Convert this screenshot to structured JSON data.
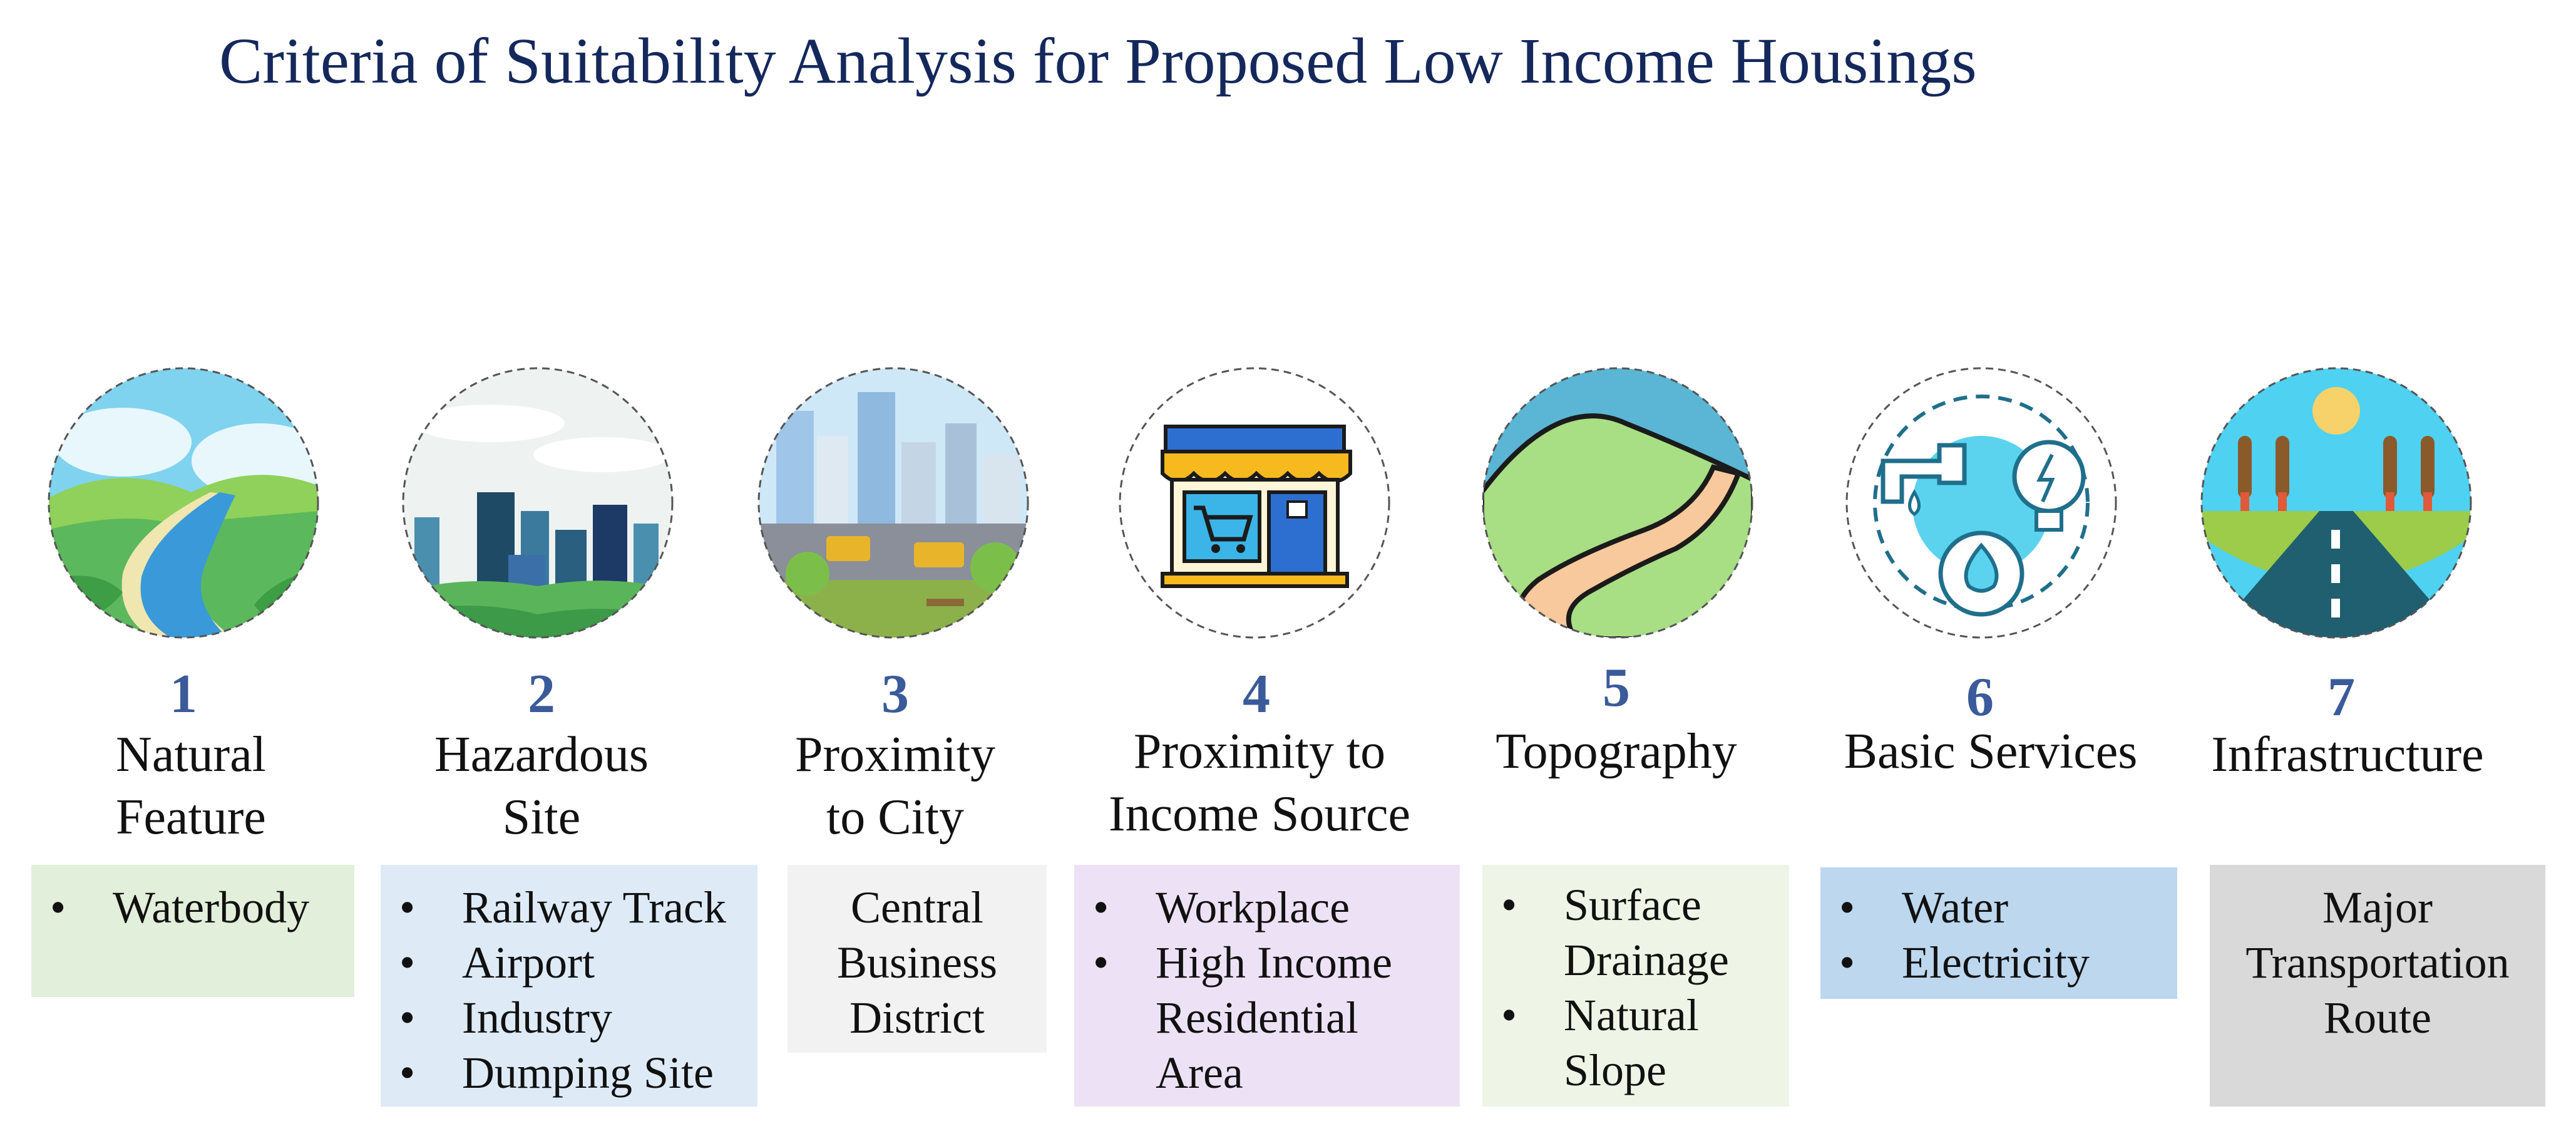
{
  "title": "Criteria of Suitability Analysis for Proposed Low Income Housings",
  "criteria": [
    {
      "number": "1",
      "label_lines": [
        "Natural",
        "Feature"
      ],
      "items": [
        "Waterbody"
      ],
      "box_color": "#e2efda",
      "icon": "landscape-river-icon"
    },
    {
      "number": "2",
      "label_lines": [
        "Hazardous",
        "Site"
      ],
      "items": [
        "Railway Track",
        "Airport",
        "Industry",
        "Dumping Site"
      ],
      "box_color": "#deebf7",
      "icon": "city-skyline-icon"
    },
    {
      "number": "3",
      "label_lines": [
        "Proximity",
        "to City"
      ],
      "text_lines": [
        "Central",
        "Business",
        "District"
      ],
      "box_color": "#f2f2f2",
      "icon": "city-construction-icon"
    },
    {
      "number": "4",
      "label_lines": [
        "Proximity to",
        "Income Source"
      ],
      "items": [
        "Workplace",
        "High Income Residential Area"
      ],
      "box_color": "#ede2f5",
      "icon": "shop-storefront-icon"
    },
    {
      "number": "5",
      "label_lines": [
        "Topography"
      ],
      "items": [
        "Surface Drainage",
        "Natural Slope"
      ],
      "box_color": "#eef5e6",
      "icon": "hill-road-icon"
    },
    {
      "number": "6",
      "label_lines": [
        "Basic Services"
      ],
      "items": [
        "Water",
        "Electricity"
      ],
      "box_color": "#bdd7ee",
      "icon": "utilities-icon"
    },
    {
      "number": "7",
      "label_lines": [
        "Infrastructure"
      ],
      "text_lines": [
        "Major",
        "Transportation",
        "Route"
      ],
      "box_color": "#d9d9d9",
      "icon": "road-icon"
    }
  ]
}
